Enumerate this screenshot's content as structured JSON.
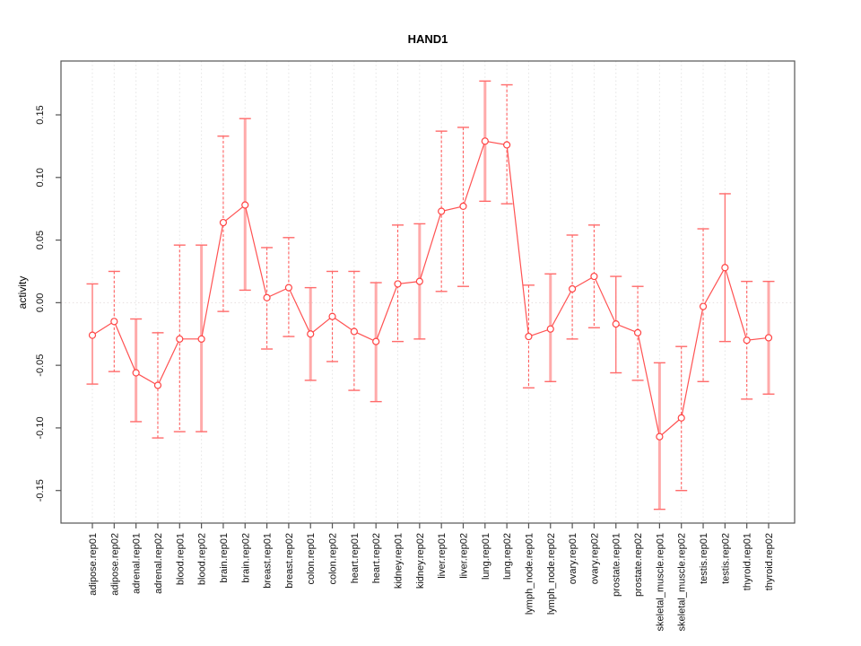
{
  "title": "HAND1",
  "chart_data": {
    "type": "line",
    "title": "HAND1",
    "xlabel": "",
    "ylabel": "activity",
    "legend": "none",
    "grid": "vertical dotted gridline at each category; dotted horizontal line at y=0",
    "ylim": [
      -0.176,
      0.193
    ],
    "yticks": [
      -0.15,
      -0.1,
      -0.05,
      0.0,
      0.05,
      0.1,
      0.15
    ],
    "colors": {
      "series_line": "#ff5252",
      "point_stroke": "#ff4444",
      "bar_dashed": "#ff5f5f",
      "bar_thick": "#ffaaaa",
      "bar_solid": "#ff7070",
      "cap": "#ff6b6b",
      "axis": "#555555",
      "gridline": "#e4e4e4",
      "zero_line": "#e6dede"
    },
    "categories": [
      "adipose.rep01",
      "adipose.rep02",
      "adrenal.rep01",
      "adrenal.rep02",
      "blood.rep01",
      "blood.rep02",
      "brain.rep01",
      "brain.rep02",
      "breast.rep01",
      "breast.rep02",
      "colon.rep01",
      "colon.rep02",
      "heart.rep01",
      "heart.rep02",
      "kidney.rep01",
      "kidney.rep02",
      "liver.rep01",
      "liver.rep02",
      "lung.rep01",
      "lung.rep02",
      "lymph_node.rep01",
      "lymph_node.rep02",
      "ovary.rep01",
      "ovary.rep02",
      "prostate.rep01",
      "prostate.rep02",
      "skeletal_muscle.rep01",
      "skeletal_muscle.rep02",
      "testis.rep01",
      "testis.rep02",
      "thyroid.rep01",
      "thyroid.rep02"
    ],
    "points": [
      {
        "label": "adipose.rep01",
        "value": -0.026,
        "lo": -0.065,
        "hi": 0.015,
        "style": "solid"
      },
      {
        "label": "adipose.rep02",
        "value": -0.015,
        "lo": -0.055,
        "hi": 0.025,
        "style": "dashed"
      },
      {
        "label": "adrenal.rep01",
        "value": -0.056,
        "lo": -0.095,
        "hi": -0.013,
        "style": "thick"
      },
      {
        "label": "adrenal.rep02",
        "value": -0.066,
        "lo": -0.108,
        "hi": -0.024,
        "style": "dashed"
      },
      {
        "label": "blood.rep01",
        "value": -0.029,
        "lo": -0.103,
        "hi": 0.046,
        "style": "dashed"
      },
      {
        "label": "blood.rep02",
        "value": -0.029,
        "lo": -0.103,
        "hi": 0.046,
        "style": "thick"
      },
      {
        "label": "brain.rep01",
        "value": 0.064,
        "lo": -0.007,
        "hi": 0.133,
        "style": "dashed"
      },
      {
        "label": "brain.rep02",
        "value": 0.078,
        "lo": 0.01,
        "hi": 0.147,
        "style": "thick"
      },
      {
        "label": "breast.rep01",
        "value": 0.004,
        "lo": -0.037,
        "hi": 0.044,
        "style": "dashed"
      },
      {
        "label": "breast.rep02",
        "value": 0.012,
        "lo": -0.027,
        "hi": 0.052,
        "style": "dashed"
      },
      {
        "label": "colon.rep01",
        "value": -0.025,
        "lo": -0.062,
        "hi": 0.012,
        "style": "thick"
      },
      {
        "label": "colon.rep02",
        "value": -0.011,
        "lo": -0.047,
        "hi": 0.025,
        "style": "dashed"
      },
      {
        "label": "heart.rep01",
        "value": -0.023,
        "lo": -0.07,
        "hi": 0.025,
        "style": "dashed"
      },
      {
        "label": "heart.rep02",
        "value": -0.031,
        "lo": -0.079,
        "hi": 0.016,
        "style": "thick"
      },
      {
        "label": "kidney.rep01",
        "value": 0.015,
        "lo": -0.031,
        "hi": 0.062,
        "style": "dashed"
      },
      {
        "label": "kidney.rep02",
        "value": 0.017,
        "lo": -0.029,
        "hi": 0.063,
        "style": "thick"
      },
      {
        "label": "liver.rep01",
        "value": 0.073,
        "lo": 0.009,
        "hi": 0.137,
        "style": "dashed"
      },
      {
        "label": "liver.rep02",
        "value": 0.077,
        "lo": 0.013,
        "hi": 0.14,
        "style": "dashed"
      },
      {
        "label": "lung.rep01",
        "value": 0.129,
        "lo": 0.081,
        "hi": 0.177,
        "style": "thick"
      },
      {
        "label": "lung.rep02",
        "value": 0.126,
        "lo": 0.079,
        "hi": 0.174,
        "style": "dashed"
      },
      {
        "label": "lymph_node.rep01",
        "value": -0.027,
        "lo": -0.068,
        "hi": 0.014,
        "style": "dashed"
      },
      {
        "label": "lymph_node.rep02",
        "value": -0.021,
        "lo": -0.063,
        "hi": 0.023,
        "style": "thick"
      },
      {
        "label": "ovary.rep01",
        "value": 0.011,
        "lo": -0.029,
        "hi": 0.054,
        "style": "dashed"
      },
      {
        "label": "ovary.rep02",
        "value": 0.021,
        "lo": -0.02,
        "hi": 0.062,
        "style": "dashed"
      },
      {
        "label": "prostate.rep01",
        "value": -0.017,
        "lo": -0.056,
        "hi": 0.021,
        "style": "solid"
      },
      {
        "label": "prostate.rep02",
        "value": -0.024,
        "lo": -0.062,
        "hi": 0.013,
        "style": "dashed"
      },
      {
        "label": "skeletal_muscle.rep01",
        "value": -0.107,
        "lo": -0.165,
        "hi": -0.048,
        "style": "thick"
      },
      {
        "label": "skeletal_muscle.rep02",
        "value": -0.092,
        "lo": -0.15,
        "hi": -0.035,
        "style": "dashed"
      },
      {
        "label": "testis.rep01",
        "value": -0.003,
        "lo": -0.063,
        "hi": 0.059,
        "style": "dashed"
      },
      {
        "label": "testis.rep02",
        "value": 0.028,
        "lo": -0.031,
        "hi": 0.087,
        "style": "solid"
      },
      {
        "label": "thyroid.rep01",
        "value": -0.03,
        "lo": -0.077,
        "hi": 0.017,
        "style": "dashed"
      },
      {
        "label": "thyroid.rep02",
        "value": -0.028,
        "lo": -0.073,
        "hi": 0.017,
        "style": "thick"
      }
    ]
  }
}
